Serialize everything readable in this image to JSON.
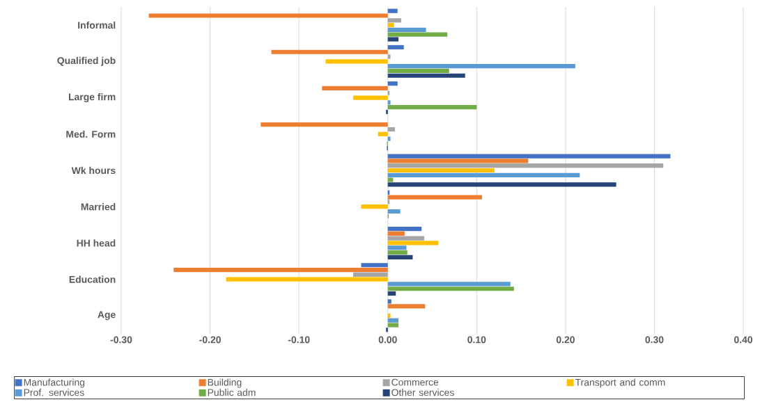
{
  "chart_data": {
    "type": "bar",
    "orientation": "horizontal",
    "categories": [
      "Informal",
      "Qualified job",
      "Large firm",
      "Med. Form",
      "Wk hours",
      "Married",
      "HH head",
      "Education",
      "Age"
    ],
    "series": [
      {
        "name": "Manufacturing",
        "color": "#4472c4",
        "values": [
          0.011,
          0.018,
          0.011,
          0.0,
          0.318,
          0.002,
          0.038,
          -0.03,
          0.004
        ]
      },
      {
        "name": "Building",
        "color": "#ed7d31",
        "values": [
          -0.269,
          -0.131,
          -0.074,
          -0.143,
          0.158,
          0.106,
          0.019,
          -0.241,
          0.042
        ]
      },
      {
        "name": "Commerce",
        "color": "#a5a5a5",
        "values": [
          0.015,
          0.003,
          0.002,
          0.008,
          0.31,
          0.002,
          0.041,
          -0.039,
          0.0
        ]
      },
      {
        "name": "Transport and comm",
        "color": "#ffc000",
        "values": [
          0.007,
          -0.07,
          -0.039,
          -0.011,
          0.12,
          -0.03,
          0.057,
          -0.182,
          0.003
        ]
      },
      {
        "name": "Prof. services",
        "color": "#5b9bd5",
        "values": [
          0.043,
          0.211,
          0.003,
          0.003,
          0.216,
          0.014,
          0.021,
          0.138,
          0.012
        ]
      },
      {
        "name": "Public adm",
        "color": "#70ad47",
        "values": [
          0.067,
          0.069,
          0.1,
          -0.001,
          0.006,
          0.001,
          0.022,
          0.142,
          0.012
        ]
      },
      {
        "name": "Other services",
        "color": "#264478",
        "values": [
          0.012,
          0.087,
          -0.002,
          -0.001,
          0.257,
          0.0,
          0.028,
          0.009,
          -0.002
        ]
      }
    ],
    "xlim": [
      -0.3,
      0.4
    ],
    "xticks": [
      {
        "value": -0.3,
        "label": "-0.30"
      },
      {
        "value": -0.2,
        "label": "-0.20"
      },
      {
        "value": -0.1,
        "label": "-0.10"
      },
      {
        "value": 0,
        "label": "0.00"
      },
      {
        "value": 0.1,
        "label": "0.10"
      },
      {
        "value": 0.2,
        "label": "0.20"
      },
      {
        "value": 0.3,
        "label": "0.30"
      },
      {
        "value": 0.4,
        "label": "0.40"
      }
    ],
    "grid": "x",
    "legend": "bottom"
  }
}
